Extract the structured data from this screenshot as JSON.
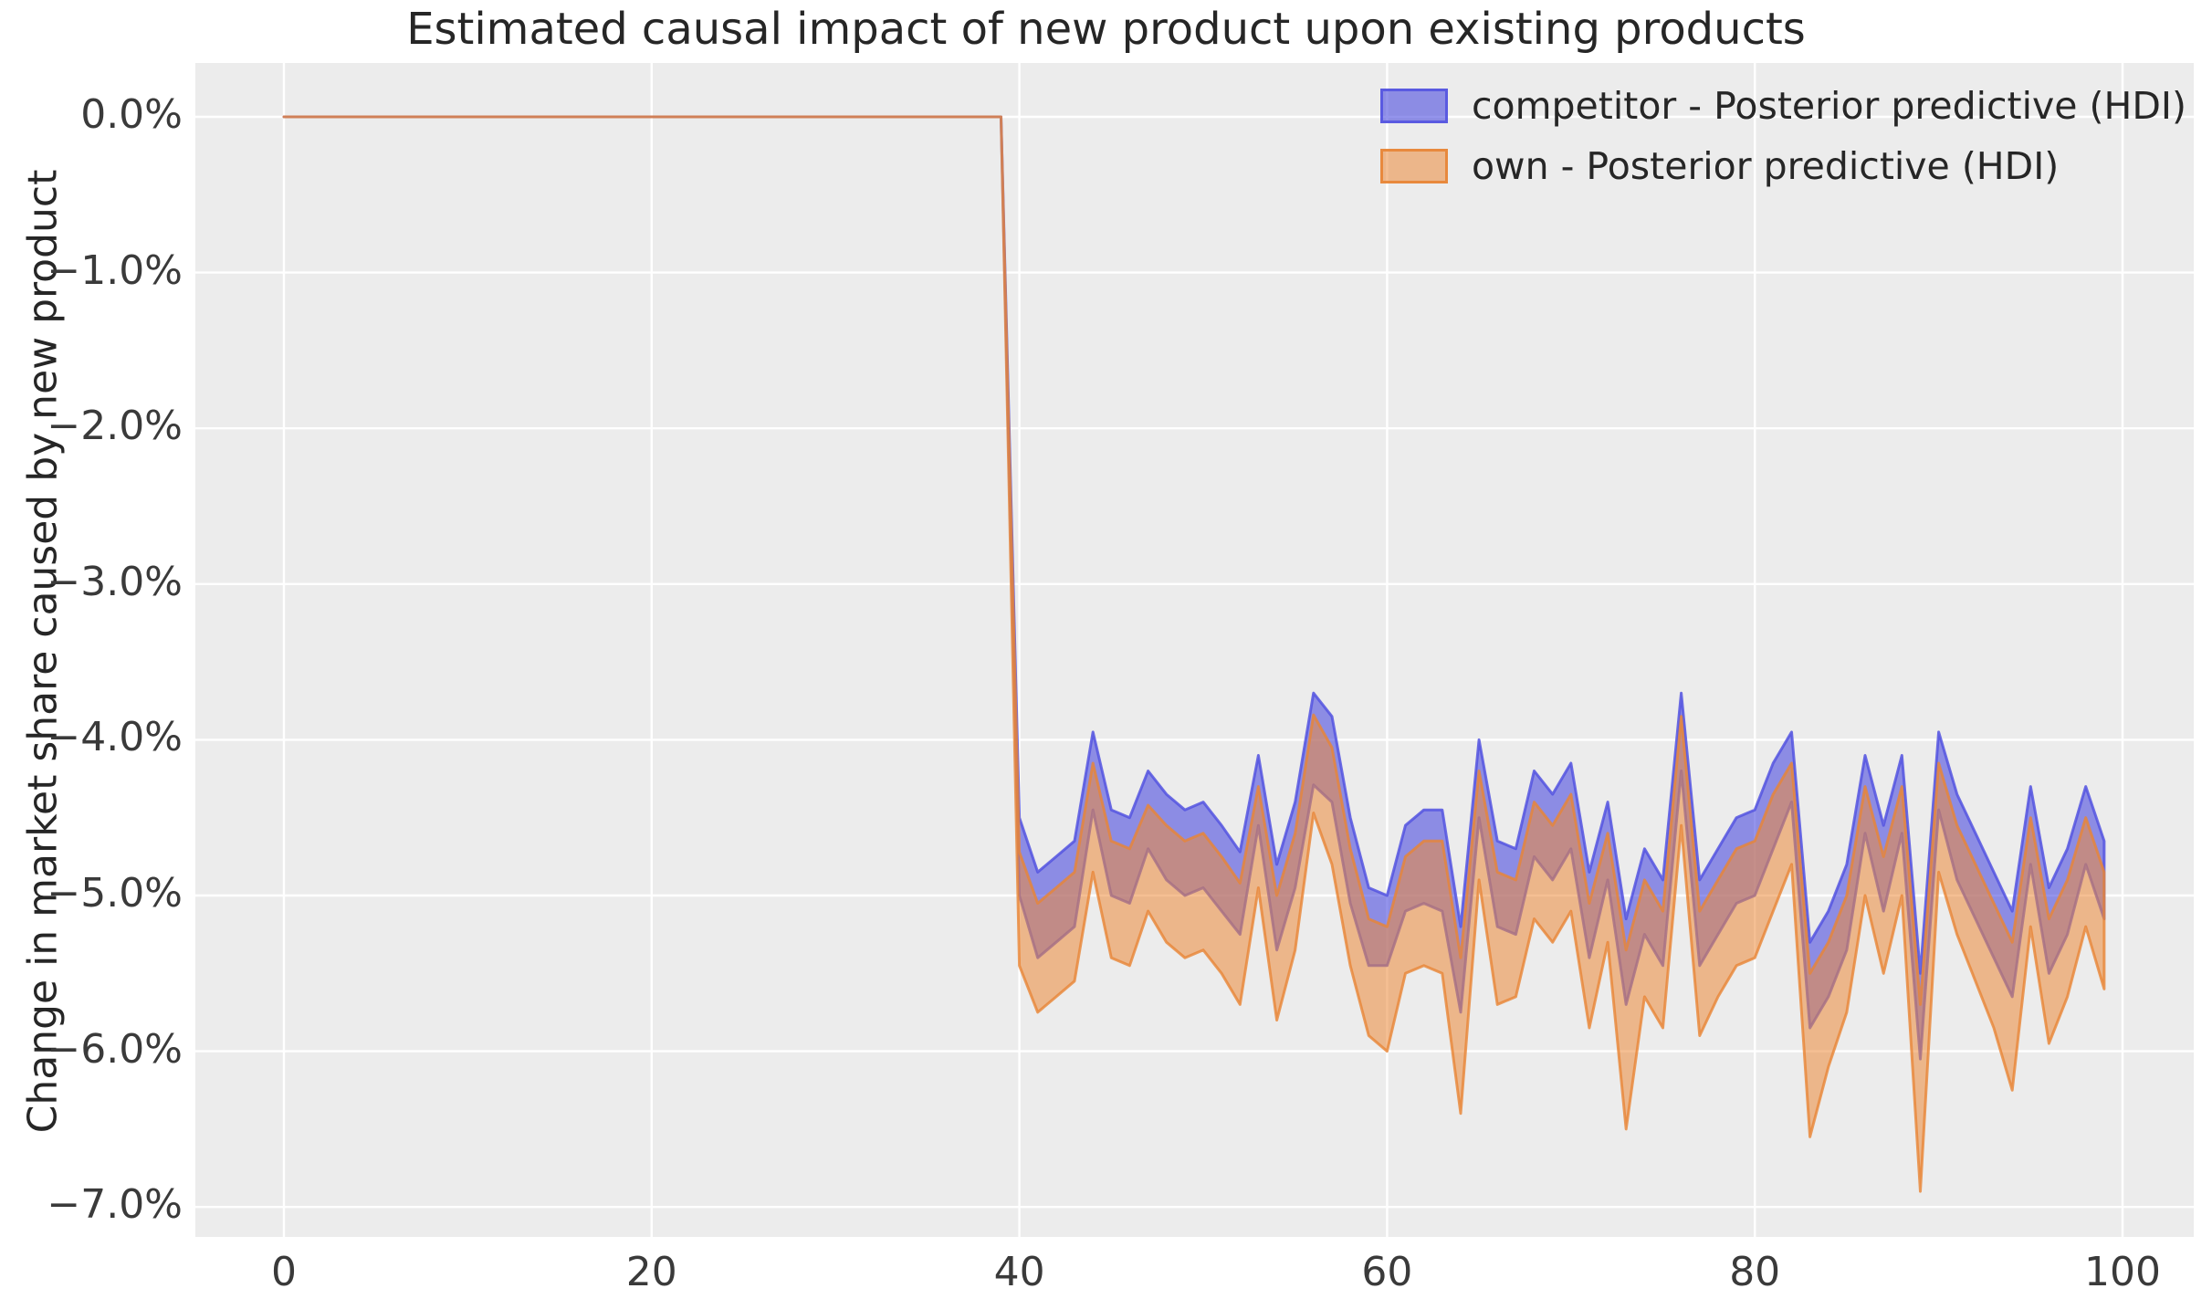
{
  "figure": {
    "title": "Estimated causal impact of new product upon existing products"
  },
  "legend": {
    "items": [
      {
        "label": "competitor - Posterior predictive (HDI)",
        "fill": "#4c4ce0",
        "edge": "#5454e0",
        "fill_opacity": 0.6,
        "edge_opacity": 0.9
      },
      {
        "label": "own - Posterior predictive (HDI)",
        "fill": "#ec8b3a",
        "edge": "#e88434",
        "fill_opacity": 0.55,
        "edge_opacity": 0.9
      }
    ]
  },
  "chart_data": {
    "type": "area",
    "title": "Estimated causal impact of new product upon existing products",
    "xlabel": "",
    "ylabel": "Change in market share caused by new product",
    "x_ticks": [
      0,
      20,
      40,
      60,
      80,
      100
    ],
    "x_tick_labels": [
      "0",
      "20",
      "40",
      "60",
      "80",
      "100"
    ],
    "y_tick_values": [
      0,
      -1,
      -2,
      -3,
      -4,
      -5,
      -6,
      -7
    ],
    "y_tick_labels": [
      "0.0%",
      "−1.0%",
      "−2.0%",
      "−3.0%",
      "−4.0%",
      "−5.0%",
      "−6.0%",
      "−7.0%"
    ],
    "xlim": [
      -4.8,
      103.9
    ],
    "ylim": [
      -7.19,
      0.35
    ],
    "grid": true,
    "legend_position": "upper right",
    "axes_background": "#ececec",
    "grid_color": "#ffffff",
    "intervention_x": 40,
    "pre_period": {
      "x_start": 0,
      "x_end": 39,
      "value_percent": 0
    },
    "units": "percent change in market share",
    "series": [
      {
        "name": "competitor - Posterior predictive (HDI)",
        "band": "HDI",
        "post_x_start": 40,
        "upper": [
          -4.5,
          -4.85,
          -4.75,
          -4.65,
          -3.95,
          -4.45,
          -4.5,
          -4.2,
          -4.35,
          -4.45,
          -4.4,
          -4.55,
          -4.72,
          -4.1,
          -4.8,
          -4.4,
          -3.7,
          -3.85,
          -4.5,
          -4.95,
          -5.0,
          -4.55,
          -4.45,
          -4.45,
          -5.2,
          -4.0,
          -4.65,
          -4.7,
          -4.2,
          -4.35,
          -4.15,
          -4.85,
          -4.4,
          -5.15,
          -4.7,
          -4.9,
          -3.7,
          -4.9,
          -4.7,
          -4.5,
          -4.45,
          -4.15,
          -3.95,
          -5.3,
          -5.1,
          -4.8,
          -4.1,
          -4.55,
          -4.1,
          -5.5,
          -3.95,
          -4.35,
          -4.6,
          -4.85,
          -5.1,
          -4.3,
          -4.95,
          -4.7,
          -4.3,
          -4.65
        ],
        "lower": [
          -5.0,
          -5.4,
          -5.3,
          -5.2,
          -4.45,
          -5.0,
          -5.05,
          -4.7,
          -4.9,
          -5.0,
          -4.95,
          -5.1,
          -5.25,
          -4.55,
          -5.35,
          -4.95,
          -4.29,
          -4.4,
          -5.05,
          -5.45,
          -5.45,
          -5.1,
          -5.05,
          -5.1,
          -5.75,
          -4.5,
          -5.2,
          -5.25,
          -4.75,
          -4.9,
          -4.7,
          -5.4,
          -4.9,
          -5.7,
          -5.25,
          -5.45,
          -4.2,
          -5.45,
          -5.25,
          -5.05,
          -5.0,
          -4.7,
          -4.4,
          -5.85,
          -5.65,
          -5.35,
          -4.6,
          -5.1,
          -4.6,
          -6.05,
          -4.45,
          -4.9,
          -5.15,
          -5.4,
          -5.65,
          -4.8,
          -5.5,
          -5.25,
          -4.8,
          -5.15
        ]
      },
      {
        "name": "own - Posterior predictive (HDI)",
        "band": "HDI",
        "post_x_start": 40,
        "upper": [
          -4.72,
          -5.05,
          -4.95,
          -4.85,
          -4.15,
          -4.65,
          -4.7,
          -4.42,
          -4.55,
          -4.65,
          -4.6,
          -4.75,
          -4.92,
          -4.3,
          -5.0,
          -4.6,
          -3.84,
          -4.05,
          -4.7,
          -5.15,
          -5.2,
          -4.75,
          -4.65,
          -4.65,
          -5.4,
          -4.2,
          -4.85,
          -4.9,
          -4.4,
          -4.55,
          -4.35,
          -5.05,
          -4.6,
          -5.35,
          -4.9,
          -5.1,
          -3.85,
          -5.1,
          -4.9,
          -4.7,
          -4.65,
          -4.35,
          -4.15,
          -5.5,
          -5.3,
          -5.0,
          -4.3,
          -4.75,
          -4.3,
          -5.7,
          -4.15,
          -4.55,
          -4.8,
          -5.05,
          -5.3,
          -4.5,
          -5.15,
          -4.9,
          -4.5,
          -4.85
        ],
        "lower": [
          -5.45,
          -5.75,
          -5.65,
          -5.55,
          -4.85,
          -5.4,
          -5.45,
          -5.1,
          -5.3,
          -5.4,
          -5.35,
          -5.5,
          -5.7,
          -4.95,
          -5.8,
          -5.35,
          -4.47,
          -4.8,
          -5.45,
          -5.9,
          -6.0,
          -5.5,
          -5.45,
          -5.5,
          -6.4,
          -4.9,
          -5.7,
          -5.65,
          -5.15,
          -5.3,
          -5.1,
          -5.85,
          -5.3,
          -6.5,
          -5.65,
          -5.85,
          -4.55,
          -5.9,
          -5.65,
          -5.45,
          -5.4,
          -5.1,
          -4.8,
          -6.55,
          -6.1,
          -5.75,
          -5.0,
          -5.5,
          -5.0,
          -6.9,
          -4.85,
          -5.25,
          -5.55,
          -5.85,
          -6.25,
          -5.2,
          -5.95,
          -5.65,
          -5.2,
          -5.6
        ]
      }
    ]
  }
}
